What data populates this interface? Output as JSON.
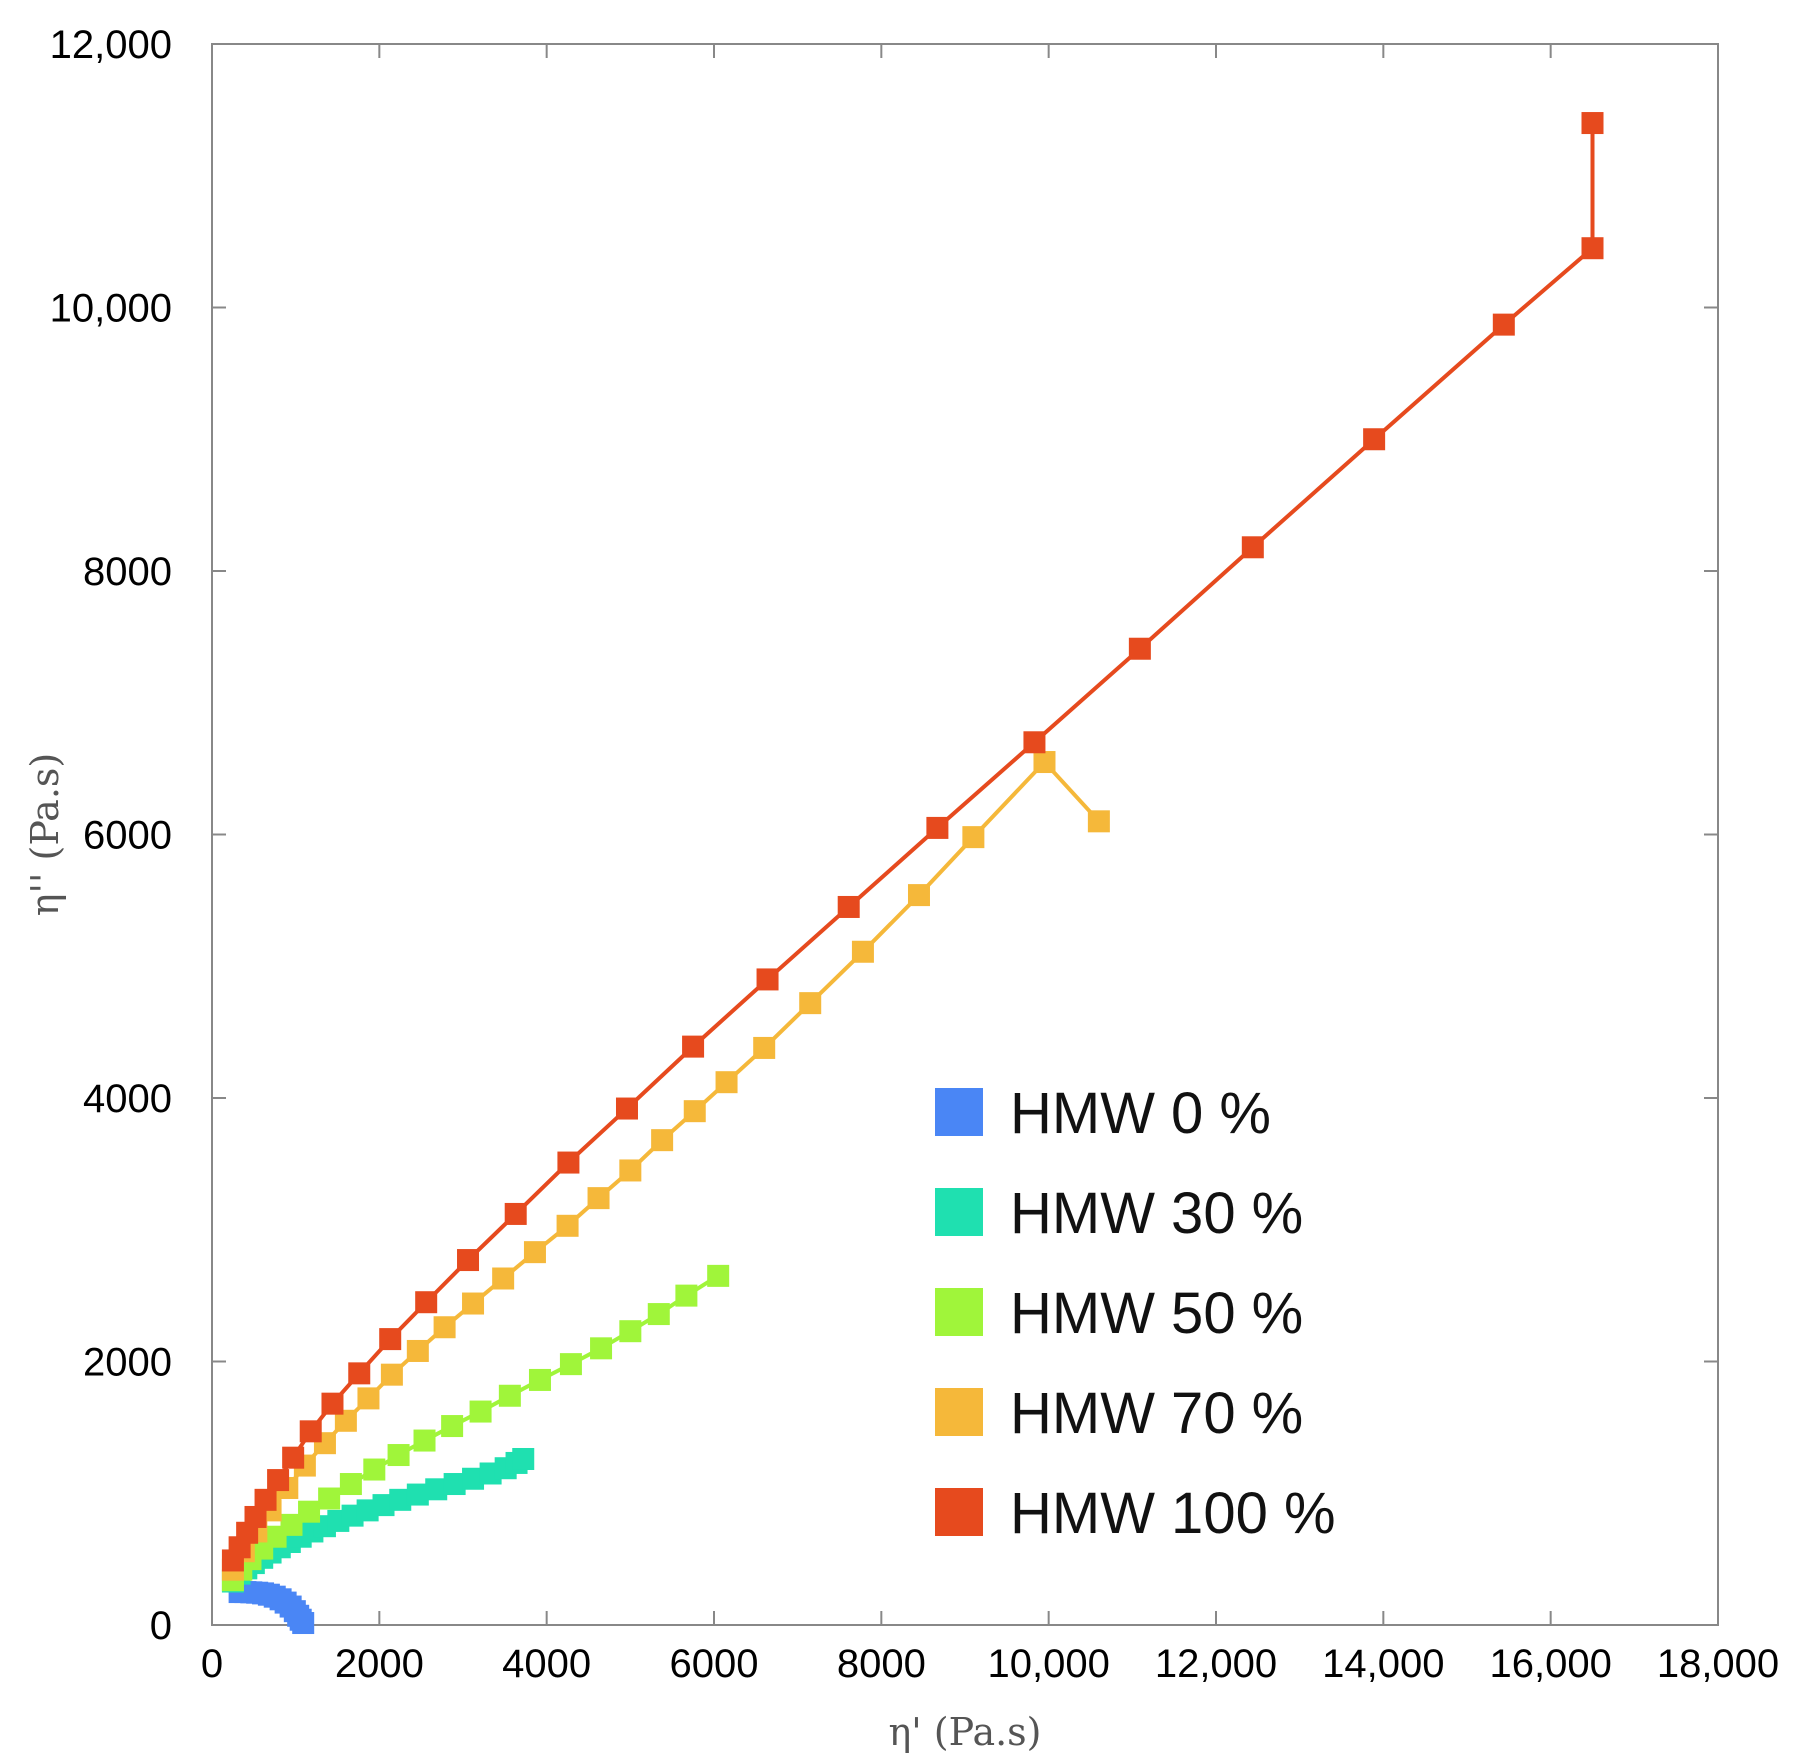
{
  "chart_data": {
    "type": "line",
    "title": "",
    "xlabel": "η' (Pa.s)",
    "ylabel": "η'' (Pa.s)",
    "xlim": [
      0,
      18000
    ],
    "ylim": [
      0,
      12000
    ],
    "grid": false,
    "legend_position": "bottom-right",
    "x_ticks": [
      {
        "value": 0,
        "label": "0"
      },
      {
        "value": 2000,
        "label": "2000"
      },
      {
        "value": 4000,
        "label": "4000"
      },
      {
        "value": 6000,
        "label": "6000"
      },
      {
        "value": 8000,
        "label": "8000"
      },
      {
        "value": 10000,
        "label": "10,000"
      },
      {
        "value": 12000,
        "label": "12,000"
      },
      {
        "value": 14000,
        "label": "14,000"
      },
      {
        "value": 16000,
        "label": "16,000"
      },
      {
        "value": 18000,
        "label": "18,000"
      }
    ],
    "y_ticks": [
      {
        "value": 0,
        "label": "0"
      },
      {
        "value": 2000,
        "label": "2000"
      },
      {
        "value": 4000,
        "label": "4000"
      },
      {
        "value": 6000,
        "label": "6000"
      },
      {
        "value": 8000,
        "label": "8000"
      },
      {
        "value": 10000,
        "label": "10,000"
      },
      {
        "value": 12000,
        "label": "12,000"
      }
    ],
    "series": [
      {
        "name": "HMW 0 %",
        "color": "#4a86f5",
        "points": [
          [
            330,
            250
          ],
          [
            400,
            250
          ],
          [
            470,
            248
          ],
          [
            540,
            245
          ],
          [
            610,
            240
          ],
          [
            680,
            230
          ],
          [
            750,
            215
          ],
          [
            820,
            195
          ],
          [
            880,
            170
          ],
          [
            940,
            140
          ],
          [
            990,
            105
          ],
          [
            1030,
            70
          ],
          [
            1060,
            40
          ],
          [
            1090,
            15
          ]
        ]
      },
      {
        "name": "HMW 30 %",
        "color": "#1fe0b0",
        "points": [
          [
            250,
            330
          ],
          [
            330,
            390
          ],
          [
            410,
            430
          ],
          [
            500,
            470
          ],
          [
            600,
            510
          ],
          [
            700,
            550
          ],
          [
            810,
            590
          ],
          [
            930,
            630
          ],
          [
            1060,
            670
          ],
          [
            1200,
            710
          ],
          [
            1350,
            750
          ],
          [
            1510,
            790
          ],
          [
            1680,
            830
          ],
          [
            1860,
            870
          ],
          [
            2050,
            910
          ],
          [
            2250,
            950
          ],
          [
            2460,
            990
          ],
          [
            2680,
            1030
          ],
          [
            2900,
            1070
          ],
          [
            3120,
            1110
          ],
          [
            3330,
            1150
          ],
          [
            3510,
            1190
          ],
          [
            3640,
            1230
          ],
          [
            3720,
            1260
          ]
        ]
      },
      {
        "name": "HMW 50 %",
        "color": "#a0f53a",
        "points": [
          [
            250,
            340
          ],
          [
            350,
            420
          ],
          [
            460,
            500
          ],
          [
            600,
            580
          ],
          [
            760,
            670
          ],
          [
            950,
            760
          ],
          [
            1160,
            860
          ],
          [
            1400,
            960
          ],
          [
            1660,
            1070
          ],
          [
            1940,
            1180
          ],
          [
            2230,
            1290
          ],
          [
            2540,
            1400
          ],
          [
            2870,
            1510
          ],
          [
            3210,
            1620
          ],
          [
            3560,
            1740
          ],
          [
            3920,
            1860
          ],
          [
            4290,
            1980
          ],
          [
            4650,
            2100
          ],
          [
            5000,
            2230
          ],
          [
            5340,
            2360
          ],
          [
            5670,
            2500
          ],
          [
            6050,
            2650
          ]
        ]
      },
      {
        "name": "HMW 70 %",
        "color": "#f5b83a",
        "points": [
          [
            250,
            420
          ],
          [
            380,
            560
          ],
          [
            530,
            710
          ],
          [
            700,
            870
          ],
          [
            900,
            1040
          ],
          [
            1110,
            1210
          ],
          [
            1350,
            1380
          ],
          [
            1600,
            1550
          ],
          [
            1870,
            1720
          ],
          [
            2150,
            1900
          ],
          [
            2460,
            2080
          ],
          [
            2780,
            2260
          ],
          [
            3120,
            2440
          ],
          [
            3480,
            2630
          ],
          [
            3860,
            2830
          ],
          [
            4250,
            3030
          ],
          [
            4620,
            3240
          ],
          [
            5000,
            3450
          ],
          [
            5380,
            3680
          ],
          [
            5770,
            3900
          ],
          [
            6150,
            4120
          ],
          [
            6600,
            4380
          ],
          [
            7150,
            4720
          ],
          [
            7780,
            5110
          ],
          [
            8450,
            5540
          ],
          [
            9100,
            5980
          ],
          [
            9950,
            6550
          ],
          [
            10600,
            6100
          ]
        ]
      },
      {
        "name": "HMW 100 %",
        "color": "#e64a1e",
        "points": [
          [
            250,
            490
          ],
          [
            330,
            590
          ],
          [
            420,
            700
          ],
          [
            520,
            820
          ],
          [
            640,
            950
          ],
          [
            790,
            1100
          ],
          [
            970,
            1270
          ],
          [
            1180,
            1470
          ],
          [
            1440,
            1680
          ],
          [
            1760,
            1910
          ],
          [
            2130,
            2170
          ],
          [
            2560,
            2450
          ],
          [
            3060,
            2770
          ],
          [
            3630,
            3120
          ],
          [
            4260,
            3510
          ],
          [
            4960,
            3920
          ],
          [
            5750,
            4390
          ],
          [
            6640,
            4900
          ],
          [
            7610,
            5450
          ],
          [
            8670,
            6050
          ],
          [
            9830,
            6700
          ],
          [
            11090,
            7410
          ],
          [
            12440,
            8180
          ],
          [
            13890,
            9000
          ],
          [
            15440,
            9870
          ],
          [
            16500,
            10450
          ],
          [
            16500,
            11400
          ]
        ]
      }
    ]
  }
}
